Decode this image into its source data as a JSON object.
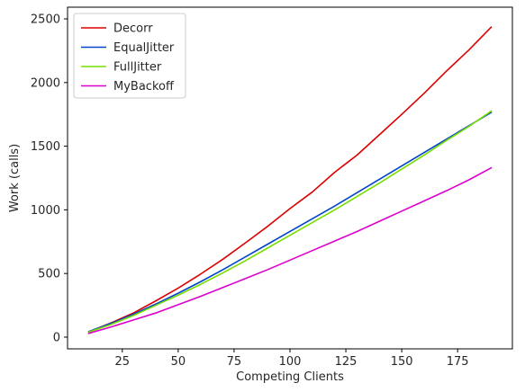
{
  "chart_data": {
    "type": "line",
    "title": "",
    "xlabel": "Competing Clients",
    "ylabel": "Work (calls)",
    "xlim": [
      0.5,
      199.5
    ],
    "ylim": [
      -92,
      2592
    ],
    "xticks": [
      25,
      50,
      75,
      100,
      125,
      150,
      175
    ],
    "yticks": [
      0,
      500,
      1000,
      1500,
      2000,
      2500
    ],
    "grid": false,
    "legend_position": "top-left",
    "x": [
      10,
      20,
      30,
      40,
      50,
      60,
      70,
      80,
      90,
      100,
      110,
      120,
      130,
      140,
      150,
      160,
      170,
      180,
      190
    ],
    "series": [
      {
        "name": "Decorr",
        "color": "#dd0000",
        "values": [
          42,
          112,
          190,
          285,
          385,
          495,
          612,
          740,
          870,
          1010,
          1140,
          1295,
          1430,
          1590,
          1750,
          1915,
          2090,
          2255,
          2435
        ]
      },
      {
        "name": "EqualJitter",
        "color": "#0044cc",
        "values": [
          44,
          108,
          180,
          260,
          345,
          435,
          530,
          630,
          730,
          830,
          930,
          1030,
          1135,
          1240,
          1345,
          1450,
          1555,
          1660,
          1765
        ]
      },
      {
        "name": "FullJitter",
        "color": "#77dd00",
        "values": [
          40,
          100,
          170,
          250,
          330,
          415,
          505,
          600,
          700,
          800,
          900,
          1000,
          1105,
          1210,
          1320,
          1430,
          1545,
          1655,
          1775
        ]
      },
      {
        "name": "MyBackoff",
        "color": "#dd00cc",
        "values": [
          30,
          80,
          135,
          190,
          255,
          320,
          390,
          460,
          530,
          605,
          680,
          755,
          830,
          910,
          990,
          1070,
          1150,
          1235,
          1330
        ]
      }
    ]
  }
}
